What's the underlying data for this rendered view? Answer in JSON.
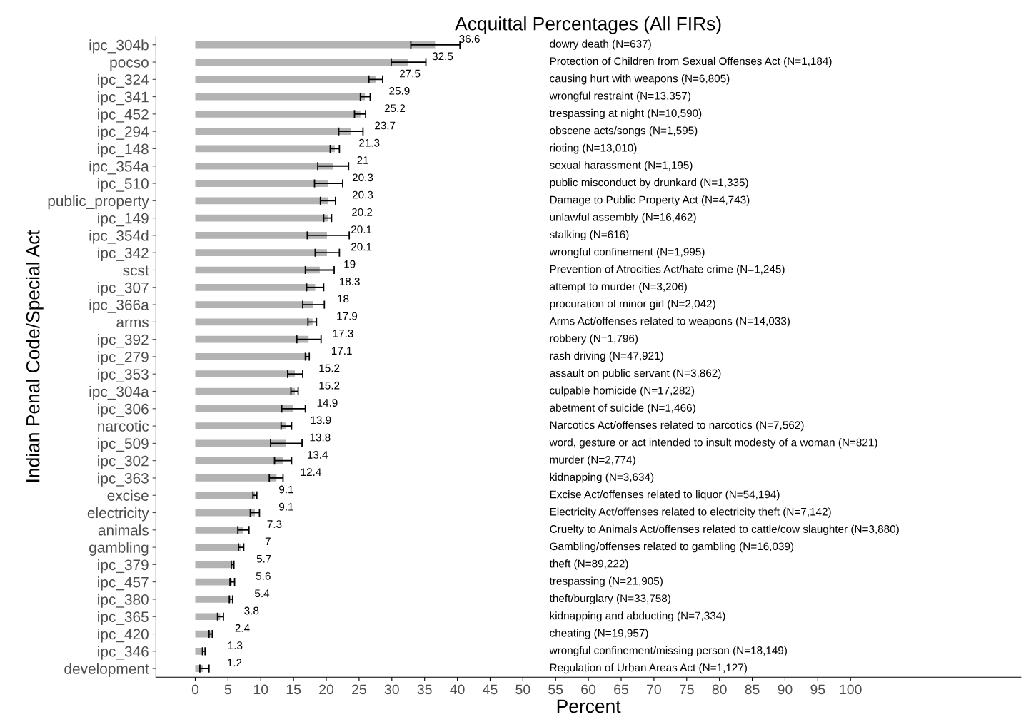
{
  "chart_data": {
    "type": "bar",
    "orientation": "horizontal",
    "title": "Acquittal Percentages (All FIRs)",
    "xlabel": "Percent",
    "ylabel": "Indian Penal Code/Special Act",
    "categories": [
      "ipc_304b",
      "pocso",
      "ipc_324",
      "ipc_341",
      "ipc_452",
      "ipc_294",
      "ipc_148",
      "ipc_354a",
      "ipc_510",
      "public_property",
      "ipc_149",
      "ipc_354d",
      "ipc_342",
      "scst",
      "ipc_307",
      "ipc_366a",
      "arms",
      "ipc_392",
      "ipc_279",
      "ipc_353",
      "ipc_304a",
      "ipc_306",
      "narcotic",
      "ipc_509",
      "ipc_302",
      "ipc_363",
      "excise",
      "electricity",
      "animals",
      "gambling",
      "ipc_379",
      "ipc_457",
      "ipc_380",
      "ipc_365",
      "ipc_420",
      "ipc_346",
      "development"
    ],
    "values": [
      36.6,
      32.5,
      27.5,
      25.9,
      25.2,
      23.7,
      21.3,
      21,
      20.3,
      20.3,
      20.2,
      20.1,
      20.1,
      19,
      18.3,
      18,
      17.9,
      17.3,
      17.1,
      15.2,
      15.2,
      14.9,
      13.9,
      13.8,
      13.4,
      12.4,
      9.1,
      9.1,
      7.3,
      7,
      5.7,
      5.6,
      5.4,
      3.8,
      2.4,
      1.3,
      1.2
    ],
    "errors": [
      [
        32.9,
        40.4
      ],
      [
        29.9,
        35.2
      ],
      [
        26.5,
        28.6
      ],
      [
        25.2,
        26.7
      ],
      [
        24.3,
        26.0
      ],
      [
        21.9,
        25.6
      ],
      [
        20.6,
        22.0
      ],
      [
        18.7,
        23.4
      ],
      [
        18.2,
        22.5
      ],
      [
        19.1,
        21.4
      ],
      [
        19.6,
        20.8
      ],
      [
        17.1,
        23.5
      ],
      [
        18.3,
        22.0
      ],
      [
        16.8,
        21.2
      ],
      [
        17.0,
        19.6
      ],
      [
        16.4,
        19.7
      ],
      [
        17.2,
        18.5
      ],
      [
        15.5,
        19.2
      ],
      [
        16.8,
        17.4
      ],
      [
        14.1,
        16.4
      ],
      [
        14.6,
        15.7
      ],
      [
        13.2,
        16.8
      ],
      [
        13.1,
        14.7
      ],
      [
        11.5,
        16.3
      ],
      [
        12.1,
        14.7
      ],
      [
        11.3,
        13.4
      ],
      [
        8.8,
        9.4
      ],
      [
        8.4,
        9.8
      ],
      [
        6.5,
        8.2
      ],
      [
        6.6,
        7.4
      ],
      [
        5.5,
        5.9
      ],
      [
        5.3,
        6.0
      ],
      [
        5.2,
        5.7
      ],
      [
        3.4,
        4.3
      ],
      [
        2.1,
        2.6
      ],
      [
        1.1,
        1.5
      ],
      [
        0.7,
        2.1
      ]
    ],
    "color": "#b3b3b3",
    "data_labels": true,
    "xlim": [
      -6,
      126
    ],
    "xticks": [
      0,
      5,
      10,
      15,
      20,
      25,
      30,
      35,
      40,
      45,
      50,
      55,
      60,
      65,
      70,
      75,
      80,
      85,
      90,
      95,
      100
    ],
    "grid": false,
    "legend": false,
    "annotations": [
      "dowry death (N=637)",
      "Protection of Children from Sexual Offenses Act (N=1,184)",
      "causing hurt with weapons (N=6,805)",
      "wrongful restraint (N=13,357)",
      "trespassing at night (N=10,590)",
      "obscene acts/songs (N=1,595)",
      "rioting (N=13,010)",
      "sexual harassment (N=1,195)",
      "public misconduct by drunkard (N=1,335)",
      "Damage to Public Property Act (N=4,743)",
      "unlawful assembly (N=16,462)",
      "stalking (N=616)",
      "wrongful confinement (N=1,995)",
      "Prevention of Atrocities Act/hate crime (N=1,245)",
      "attempt to murder (N=3,206)",
      "procuration of minor girl (N=2,042)",
      "Arms Act/offenses related to weapons (N=14,033)",
      "robbery (N=1,796)",
      "rash driving (N=47,921)",
      "assault on public servant (N=3,862)",
      "culpable homicide (N=17,282)",
      "abetment of suicide (N=1,466)",
      "Narcotics Act/offenses related to narcotics (N=7,562)",
      "word, gesture or act intended to insult modesty of a woman (N=821)",
      "murder (N=2,774)",
      "kidnapping (N=3,634)",
      "Excise Act/offenses related to liquor (N=54,194)",
      "Electricity Act/offenses related to electricity theft (N=7,142)",
      "Cruelty to Animals Act/offenses related to cattle/cow slaughter (N=3,880)",
      "Gambling/offenses related to gambling (N=16,039)",
      "theft (N=89,222)",
      "trespassing (N=21,905)",
      "theft/burglary (N=33,758)",
      "kidnapping and abducting (N=7,334)",
      "cheating (N=19,957)",
      "wrongful confinement/missing person (N=18,149)",
      "Regulation of Urban Areas Act (N=1,127)"
    ]
  }
}
